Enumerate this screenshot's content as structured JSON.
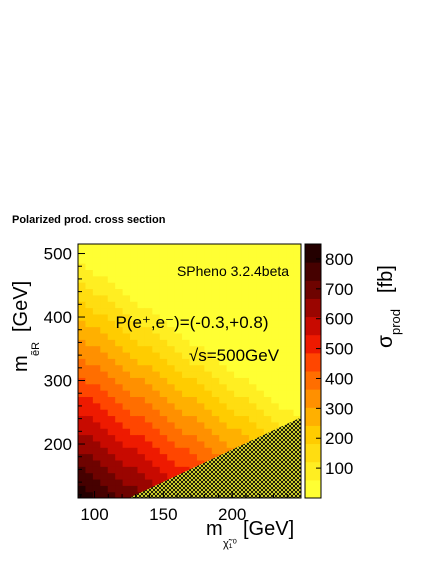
{
  "chart_data": {
    "type": "heatmap",
    "title": "Polarized prod. cross section",
    "xlabel": {
      "main": "m",
      "sub": "χ̃₁⁰",
      "unit": "[GeV]"
    },
    "ylabel": {
      "main": "m",
      "sub": "ẽR",
      "unit": "[GeV]"
    },
    "zlabel": {
      "main": "σ",
      "sub": "prod",
      "unit": "[fb]"
    },
    "xlim": [
      88,
      250
    ],
    "ylim": [
      115,
      515
    ],
    "zlim": [
      0,
      850
    ],
    "x_ticks": [
      100,
      150,
      200
    ],
    "y_ticks": [
      200,
      300,
      400,
      500
    ],
    "z_ticks": [
      100,
      200,
      300,
      400,
      500,
      600,
      700,
      800
    ],
    "annotations": [
      "SPheno 3.2.4beta",
      "P(e⁺,e⁻)=(-0.3,+0.8)",
      "√s=500GeV"
    ],
    "excluded_region": {
      "description": "hatched (kinematically forbidden)",
      "boundary": [
        [
          125,
          115
        ],
        [
          250,
          242
        ]
      ]
    },
    "z_model": {
      "max": 830,
      "at": [
        88,
        115
      ],
      "x_gradient": 3.2,
      "y_gradient": 2.05
    }
  },
  "colors": {
    "palette": [
      "#ffff33",
      "#ffee22",
      "#ffdd11",
      "#ffcc00",
      "#ffb000",
      "#ff9000",
      "#ff6e00",
      "#ff4600",
      "#ee1a00",
      "#c80a00",
      "#9a0500",
      "#6e0300",
      "#460100",
      "#240000"
    ]
  }
}
